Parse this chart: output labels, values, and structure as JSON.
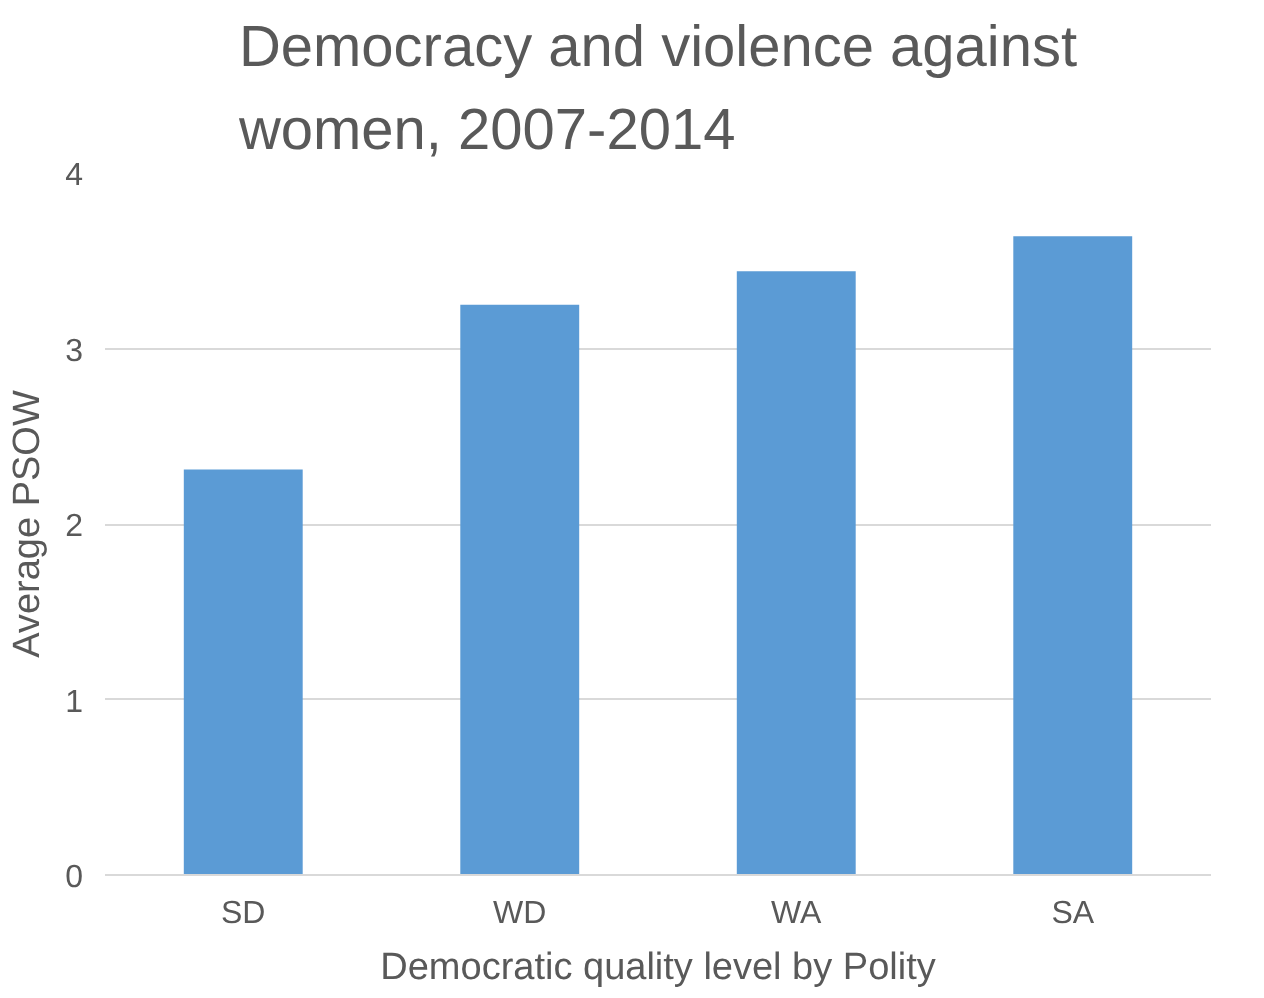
{
  "chart_data": {
    "type": "bar",
    "title": "Democracy and violence against women, 2007-2014",
    "xlabel": "Democratic quality level by Polity",
    "ylabel": "Average PSOW",
    "categories": [
      "SD",
      "WD",
      "WA",
      "SA"
    ],
    "values": [
      2.31,
      3.25,
      3.44,
      3.64
    ],
    "color": "#5b9bd5",
    "ylim": [
      0,
      4
    ],
    "yticks": [
      0,
      1,
      2,
      3,
      4
    ],
    "grid": "y"
  }
}
